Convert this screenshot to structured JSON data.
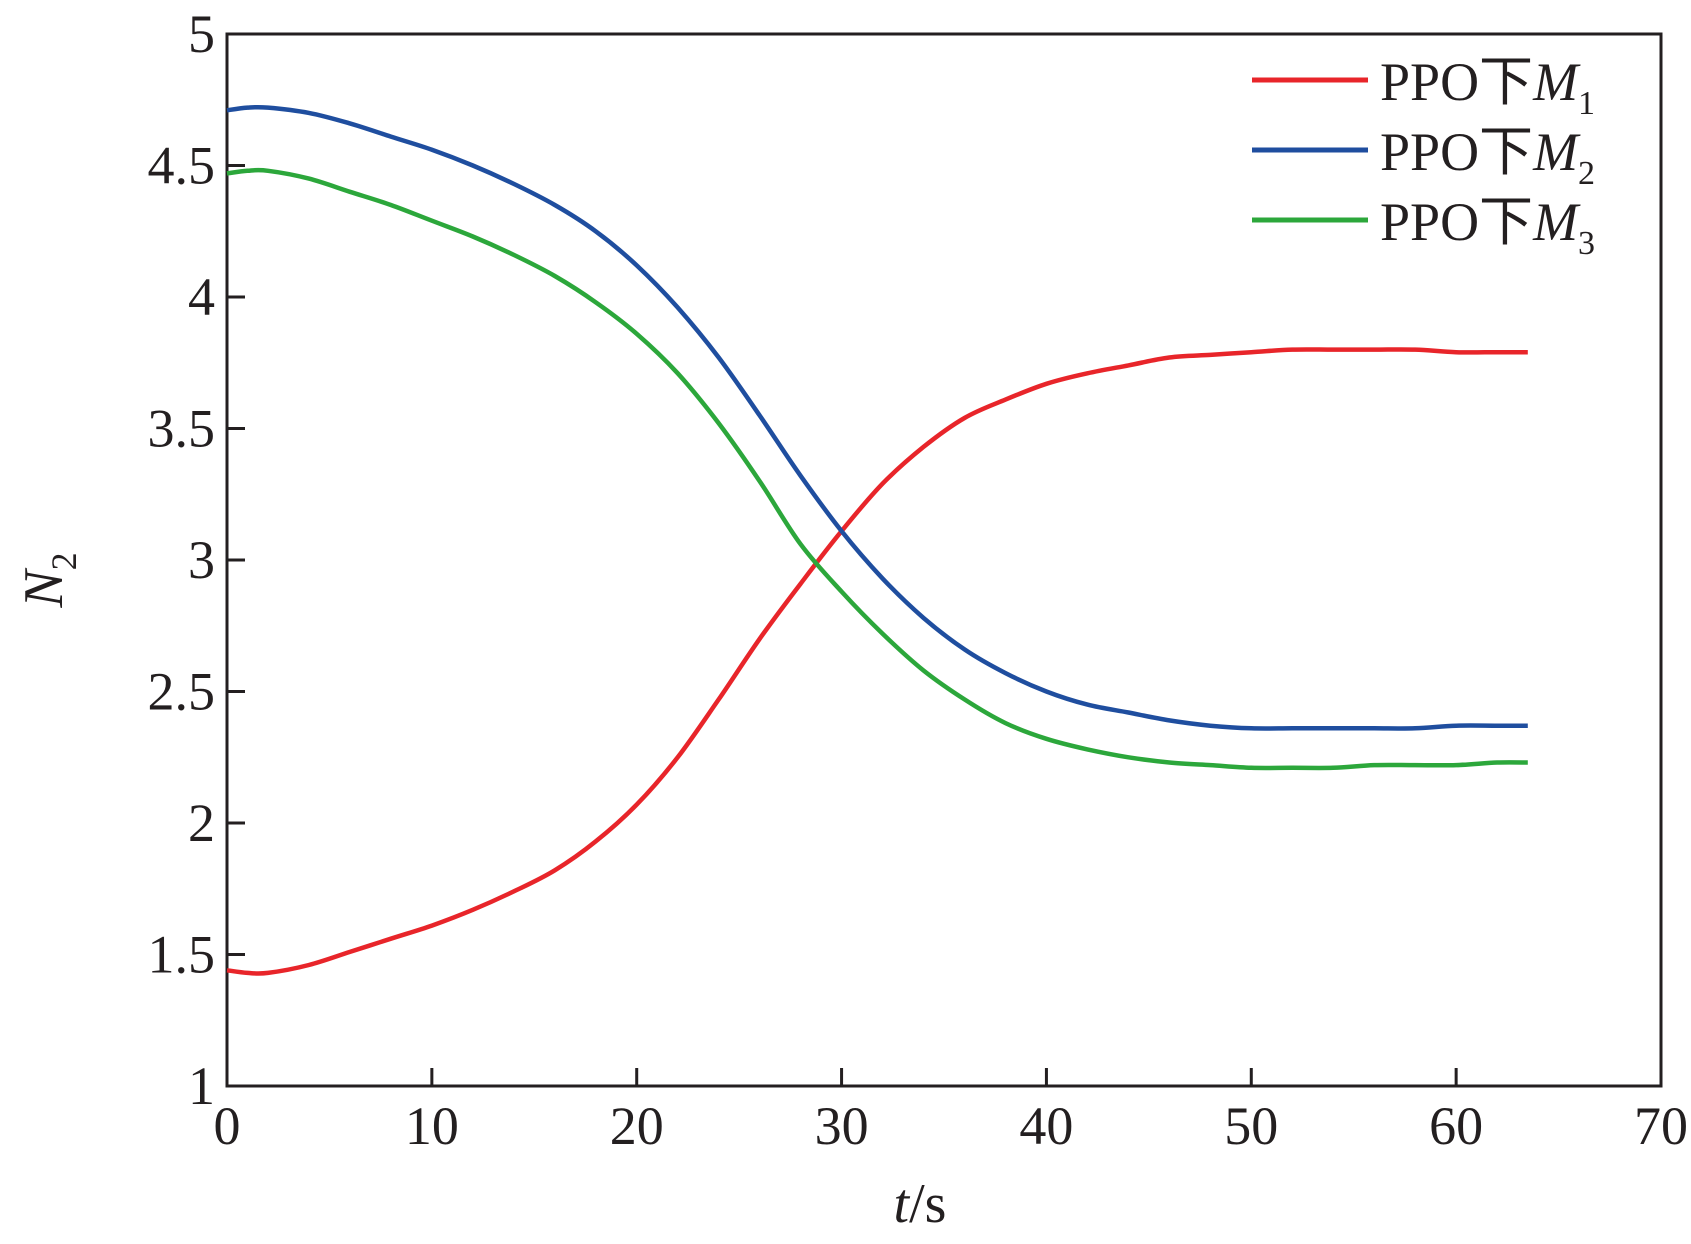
{
  "chart_data": {
    "type": "line",
    "xlabel": {
      "var": "t",
      "unit": "/s"
    },
    "ylabel": {
      "var": "N",
      "sub": "2"
    },
    "xlim": [
      0,
      70
    ],
    "ylim": [
      1,
      5
    ],
    "xticks": [
      "0",
      "10",
      "20",
      "30",
      "40",
      "50",
      "60",
      "70"
    ],
    "yticks": [
      "1",
      "1.5",
      "2",
      "2.5",
      "3",
      "3.5",
      "4",
      "4.5",
      "5"
    ],
    "grid": false,
    "legend_position": "top-right",
    "series": [
      {
        "name": "PPO下M1",
        "label_text": "PPO下",
        "label_var": "M",
        "label_sub": "1",
        "color": "#e8252a",
        "x": [
          0,
          1,
          2,
          4,
          6,
          8,
          10,
          12,
          14,
          16,
          18,
          20,
          22,
          24,
          26,
          28,
          30,
          32,
          34,
          36,
          38,
          40,
          42,
          44,
          46,
          48,
          50,
          52,
          54,
          56,
          58,
          60,
          62,
          63.5
        ],
        "y": [
          1.44,
          1.43,
          1.43,
          1.46,
          1.51,
          1.56,
          1.61,
          1.67,
          1.74,
          1.82,
          1.93,
          2.07,
          2.25,
          2.47,
          2.7,
          2.91,
          3.11,
          3.29,
          3.43,
          3.54,
          3.61,
          3.67,
          3.71,
          3.74,
          3.77,
          3.78,
          3.79,
          3.8,
          3.8,
          3.8,
          3.8,
          3.79,
          3.79,
          3.79
        ]
      },
      {
        "name": "PPO下M2",
        "label_text": "PPO下",
        "label_var": "M",
        "label_sub": "2",
        "color": "#1f4e9f",
        "x": [
          0,
          1,
          2,
          4,
          6,
          8,
          10,
          12,
          14,
          16,
          18,
          20,
          22,
          24,
          26,
          28,
          30,
          32,
          34,
          36,
          38,
          40,
          42,
          44,
          46,
          48,
          50,
          52,
          54,
          56,
          58,
          60,
          62,
          63.5
        ],
        "y": [
          4.71,
          4.72,
          4.72,
          4.7,
          4.66,
          4.61,
          4.56,
          4.5,
          4.43,
          4.35,
          4.25,
          4.12,
          3.96,
          3.77,
          3.55,
          3.32,
          3.11,
          2.93,
          2.78,
          2.66,
          2.57,
          2.5,
          2.45,
          2.42,
          2.39,
          2.37,
          2.36,
          2.36,
          2.36,
          2.36,
          2.36,
          2.37,
          2.37,
          2.37
        ]
      },
      {
        "name": "PPO下M3",
        "label_text": "PPO下",
        "label_var": "M",
        "label_sub": "3",
        "color": "#2ca73b",
        "x": [
          0,
          1,
          2,
          4,
          6,
          8,
          10,
          12,
          14,
          16,
          18,
          20,
          22,
          24,
          26,
          28,
          30,
          32,
          34,
          36,
          38,
          40,
          42,
          44,
          46,
          48,
          50,
          52,
          54,
          56,
          58,
          60,
          62,
          63.5
        ],
        "y": [
          4.47,
          4.48,
          4.48,
          4.45,
          4.4,
          4.35,
          4.29,
          4.23,
          4.16,
          4.08,
          3.98,
          3.86,
          3.71,
          3.52,
          3.3,
          3.06,
          2.88,
          2.72,
          2.58,
          2.47,
          2.38,
          2.32,
          2.28,
          2.25,
          2.23,
          2.22,
          2.21,
          2.21,
          2.21,
          2.22,
          2.22,
          2.22,
          2.23,
          2.23
        ]
      }
    ]
  }
}
